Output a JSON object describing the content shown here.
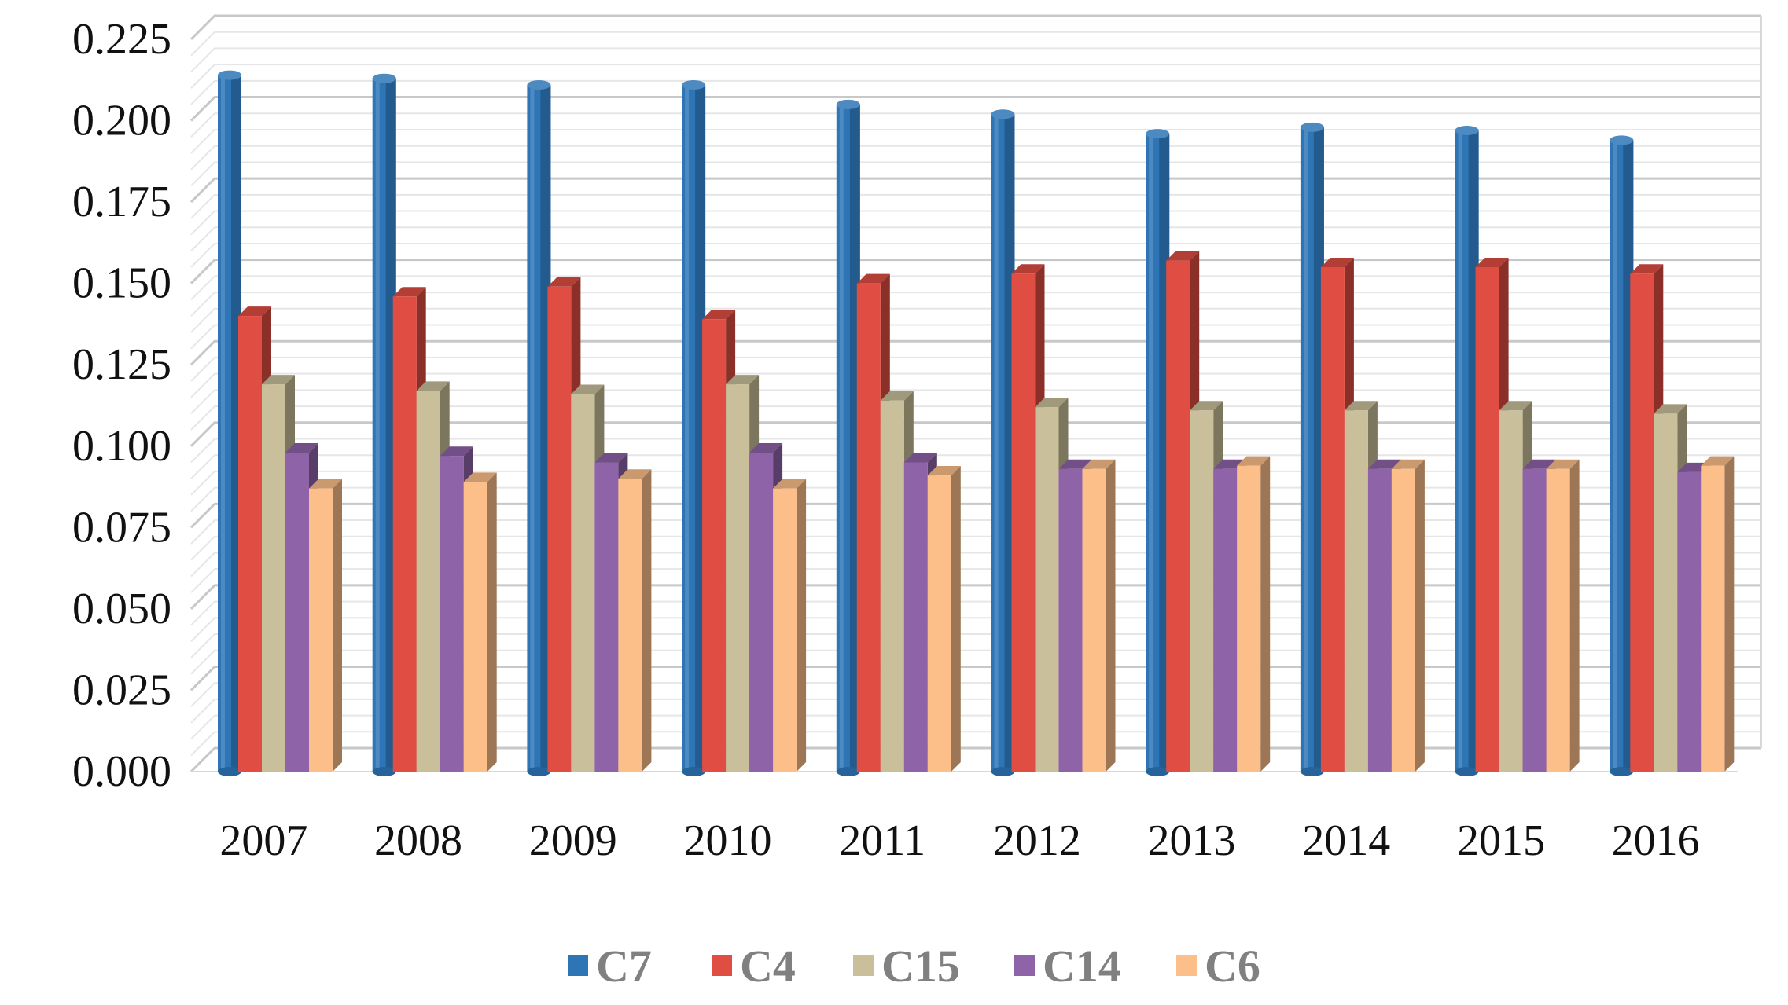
{
  "chart_data": {
    "type": "bar",
    "style": "3d-clustered",
    "title": "",
    "xlabel": "",
    "ylabel": "",
    "ylim": [
      0,
      0.225
    ],
    "y_ticks": [
      "0.000",
      "0.025",
      "0.050",
      "0.075",
      "0.100",
      "0.125",
      "0.150",
      "0.175",
      "0.200",
      "0.225"
    ],
    "grid": true,
    "legend_position": "bottom",
    "categories": [
      "2007",
      "2008",
      "2009",
      "2010",
      "2011",
      "2012",
      "2013",
      "2014",
      "2015",
      "2016"
    ],
    "series": [
      {
        "name": "C7",
        "color": "#2e75b6",
        "values": [
          0.214,
          0.213,
          0.211,
          0.211,
          0.205,
          0.202,
          0.196,
          0.198,
          0.197,
          0.194
        ]
      },
      {
        "name": "C4",
        "color": "#e04d42",
        "values": [
          0.14,
          0.146,
          0.149,
          0.139,
          0.15,
          0.153,
          0.157,
          0.155,
          0.155,
          0.153
        ]
      },
      {
        "name": "C15",
        "color": "#c9bf9a",
        "values": [
          0.119,
          0.117,
          0.116,
          0.119,
          0.114,
          0.112,
          0.111,
          0.111,
          0.111,
          0.11
        ]
      },
      {
        "name": "C14",
        "color": "#8e63a8",
        "values": [
          0.098,
          0.097,
          0.095,
          0.098,
          0.095,
          0.093,
          0.093,
          0.093,
          0.093,
          0.092
        ]
      },
      {
        "name": "C6",
        "color": "#fdbf8a",
        "values": [
          0.087,
          0.089,
          0.09,
          0.087,
          0.091,
          0.093,
          0.094,
          0.093,
          0.093,
          0.094
        ]
      }
    ]
  }
}
